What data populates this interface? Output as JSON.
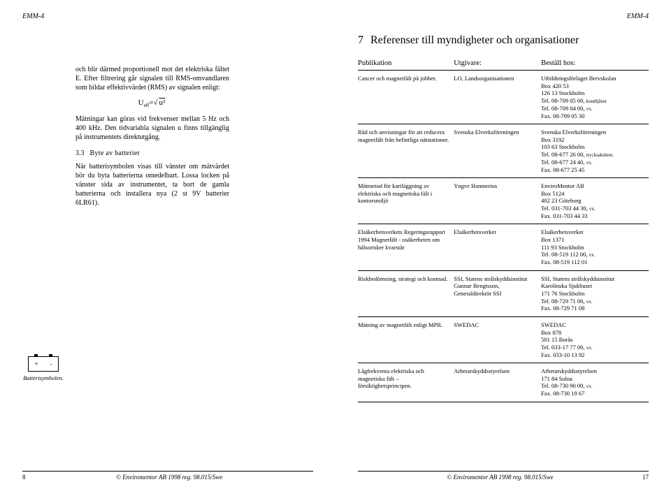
{
  "header": {
    "left": "EMM-4",
    "right": "EMM-4"
  },
  "leftPage": {
    "intro": "och blir därmed proportionell mot det elektriska fältet E. Efter filtrering går signalen till RMS-omvandlaren som bildar effektivvärdet (RMS) av signalen enligt:",
    "formula_lhs": "U",
    "formula_sub": "eff",
    "formula_eq": "=",
    "formula_rhs": "u²",
    "para2": "Mätningar kan göras vid frekvenser mellan 5 Hz och 400 kHz. Den tidvariabla signalen u finns tillgänglig på instrumentets direktutgång.",
    "sectNum": "3.3",
    "sectTitle": "Byte av batterier",
    "para3": "När batterisymbolen visas till vänster om mätvärdet bör du byta batterierna omedelbart. Lossa locken på vänster sida av instrumentet, ta bort de gamla batterierna och installera nya (2 st 9V batterier 6LR61).",
    "batteryPlus": "+",
    "batteryMinus": "-",
    "batteryCaption": "Batterisymbolen.",
    "footerLeft": "8",
    "footerCenter": "© Enviromentor AB 1998  reg. 98.015/Swe"
  },
  "rightPage": {
    "chapNum": "7",
    "chapTitle": "Referenser till myndigheter och organisationer",
    "columns": [
      "Publikation",
      "Utgivare:",
      "Beställ hos:"
    ],
    "rows": [
      {
        "pub": "Cancer och magnetfält på jobbet.",
        "utg": "LO, Landsorganisationen",
        "best": "Utbildningsförlaget Brevskolan\nBox 420 53\n126 13 Stockholm\nTel.  08-709 05 00, kundtjänst\nTel.  08-709 04 00, vx.\nFax. 08-709 05 30"
      },
      {
        "pub": "Råd och anvisningar för att reducera magnetfält från befintliga nätstationer.",
        "utg": "Svenska Elverksföreningen",
        "best": "Svenska Elverksföreningen\nBox 3192\n103 63 Stockholm\nTel.  08-677 26 00, trycksaksbest.\nTel.  08-677 24 40, vx.\nFax. 08-677 25 45"
      },
      {
        "pub": "Mätmetod för kartläggning av elektriska och magnetiska fält i kontorsmiljö",
        "utg": "Yngve Hamnerius",
        "best": "EnviroMentor AB\nBox 5124\n402 23 Göteborg\nTel.  031-703 44 30, vx.\nFax. 031-703 44 33"
      },
      {
        "pub": "Elsäkerhetsverkets Regeringsrapport 1994 Magnetfält - osäkerheten om hälsorisker kvarstår",
        "utg": "Elsäkerhetsverket",
        "best": "Elsäkerhetsverket\nBox 1371\n111 93 Stockholm\nTel.  08-519 112 00, vx.\nFax. 08-519 112 01"
      },
      {
        "pub": "Riskbedömning, strategi och kostnad.",
        "utg": "SSI, Statens strålskyddsinstitut\nGunnar Bengtsson,\nGeneraldirektör SSI",
        "best": "SSI, Statens strålskyddsinstitut\nKarolinska Sjukhuset\n171 76 Stockholm\nTel.  08-729 71 00, vx.\nFax. 08-729 71 08"
      },
      {
        "pub": "Mätning av magnetfält enligt MPR.",
        "utg": "SWEDAC",
        "best": "SWEDAC\nBox 878\n501 15 Borås\nTel.  033-17 77 00, vx.\nFax. 033-10 13 92"
      },
      {
        "pub": "Lågfrekventa elektriska och magnetiska fält – försiktighetsprincipen.",
        "utg": "Arbetarskyddsstyrelsen",
        "best": "Arbetarskyddsstyrelsen\n171 84 Solna\nTel.  08-730 90 00, vx.\nFax. 08-730 19 67"
      }
    ],
    "footerCenter": "© Enviromentor AB 1998  reg. 98.015/Swe",
    "footerRight": "17"
  }
}
